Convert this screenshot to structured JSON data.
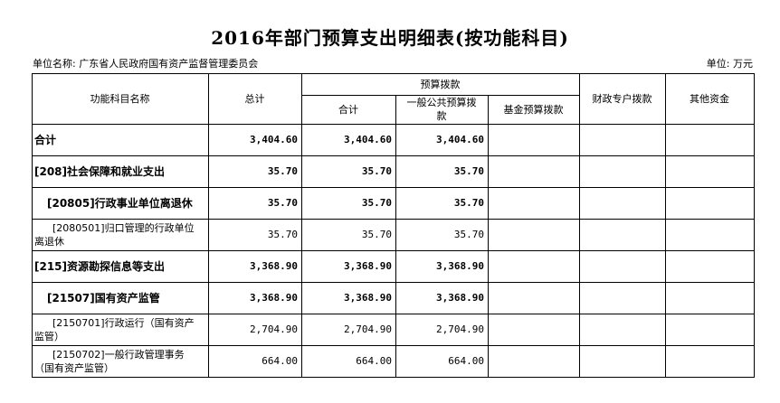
{
  "title": "2016年部门预算支出明细表(按功能科目)",
  "unit_label": "单位名称: 广东省人民政府国有资产监督管理委员会",
  "unit_right": "单位: 万元",
  "headers": {
    "func": "功能科目名称",
    "total": "总计",
    "budget_group": "预算拨款",
    "budget_sum": "合计",
    "general": "一般公共预算拨款",
    "fund": "基金预算拨款",
    "fiscal": "财政专户拨款",
    "other": "其他资金"
  },
  "rows": [
    {
      "name": "合计",
      "total": "3,404.60",
      "sum": "3,404.60",
      "general": "3,404.60",
      "fund": "",
      "fiscal": "",
      "other": ""
    },
    {
      "name": "[208]社会保障和就业支出",
      "total": "35.70",
      "sum": "35.70",
      "general": "35.70",
      "fund": "",
      "fiscal": "",
      "other": ""
    },
    {
      "name": "[20805]行政事业单位离退休",
      "total": "35.70",
      "sum": "35.70",
      "general": "35.70",
      "fund": "",
      "fiscal": "",
      "other": ""
    },
    {
      "name": "[2080501]归口管理的行政单位离退休",
      "total": "35.70",
      "sum": "35.70",
      "general": "35.70",
      "fund": "",
      "fiscal": "",
      "other": ""
    },
    {
      "name": "[215]资源勘探信息等支出",
      "total": "3,368.90",
      "sum": "3,368.90",
      "general": "3,368.90",
      "fund": "",
      "fiscal": "",
      "other": ""
    },
    {
      "name": "[21507]国有资产监管",
      "total": "3,368.90",
      "sum": "3,368.90",
      "general": "3,368.90",
      "fund": "",
      "fiscal": "",
      "other": ""
    },
    {
      "name": "[2150701]行政运行（国有资产监管）",
      "total": "2,704.90",
      "sum": "2,704.90",
      "general": "2,704.90",
      "fund": "",
      "fiscal": "",
      "other": ""
    },
    {
      "name": "[2150702]一般行政管理事务（国有资产监管）",
      "total": "664.00",
      "sum": "664.00",
      "general": "664.00",
      "fund": "",
      "fiscal": "",
      "other": ""
    }
  ]
}
